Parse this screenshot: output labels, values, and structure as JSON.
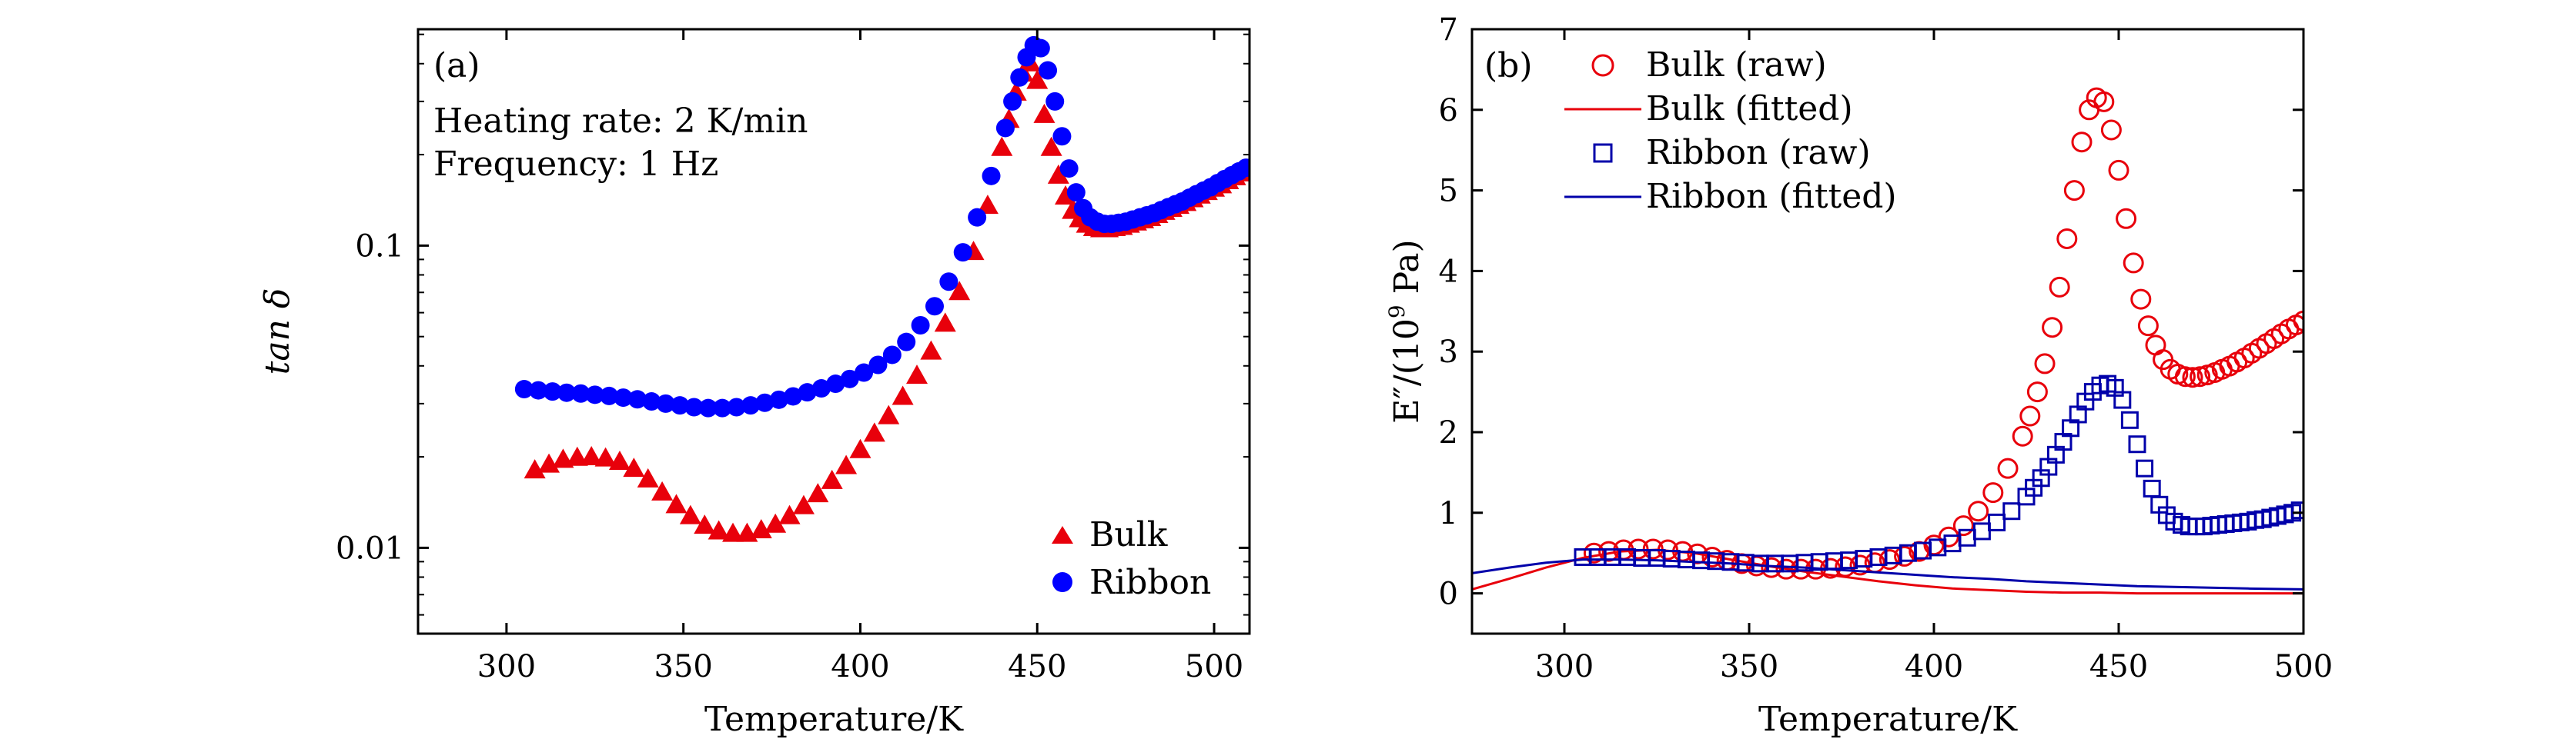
{
  "chart_data": [
    {
      "panel_label": "(a)",
      "type": "scatter",
      "annotations": [
        "Heating rate: 2 K/min",
        "Frequency: 1 Hz"
      ],
      "xlabel": "Temperature/K",
      "ylabel": "tan δ",
      "yscale": "log",
      "xlim": [
        275,
        510
      ],
      "ylim": [
        0.0052,
        0.52
      ],
      "xticks": [
        "300",
        "350",
        "400",
        "450",
        "500"
      ],
      "xtick_values": [
        300,
        350,
        400,
        450,
        500
      ],
      "yticks": [
        "0.01",
        "0.1"
      ],
      "ytick_values": [
        0.01,
        0.1
      ],
      "legend_position": "lower-right",
      "series": [
        {
          "name": "Bulk",
          "marker": "triangle",
          "color": "#e8000b",
          "x": [
            308,
            312,
            316,
            320,
            324,
            328,
            332,
            336,
            340,
            344,
            348,
            352,
            356,
            360,
            364,
            368,
            372,
            376,
            380,
            384,
            388,
            392,
            396,
            400,
            404,
            408,
            412,
            416,
            420,
            424,
            428,
            432,
            436,
            440,
            442,
            444,
            446,
            448,
            450,
            452,
            454,
            456,
            458,
            460,
            462,
            464,
            466,
            468,
            470,
            472,
            474,
            476,
            478,
            480,
            482,
            484,
            486,
            488,
            490,
            492,
            494,
            496,
            498,
            500,
            502,
            504,
            506,
            508,
            510
          ],
          "y": [
            0.018,
            0.0188,
            0.0195,
            0.0198,
            0.0199,
            0.0197,
            0.0192,
            0.0182,
            0.0168,
            0.0152,
            0.0138,
            0.0127,
            0.0118,
            0.0113,
            0.0111,
            0.0111,
            0.0114,
            0.0119,
            0.0127,
            0.0137,
            0.015,
            0.0166,
            0.0186,
            0.021,
            0.0238,
            0.0272,
            0.0315,
            0.037,
            0.0445,
            0.055,
            0.07,
            0.095,
            0.135,
            0.21,
            0.26,
            0.32,
            0.37,
            0.4,
            0.35,
            0.27,
            0.21,
            0.17,
            0.145,
            0.13,
            0.122,
            0.117,
            0.114,
            0.113,
            0.113,
            0.114,
            0.115,
            0.117,
            0.119,
            0.121,
            0.123,
            0.126,
            0.129,
            0.132,
            0.135,
            0.138,
            0.142,
            0.146,
            0.15,
            0.154,
            0.158,
            0.163,
            0.168,
            0.173,
            0.178
          ]
        },
        {
          "name": "Ribbon",
          "marker": "circle",
          "color": "#0000ff",
          "x": [
            305,
            309,
            313,
            317,
            321,
            325,
            329,
            333,
            337,
            341,
            345,
            349,
            353,
            357,
            361,
            365,
            369,
            373,
            377,
            381,
            385,
            389,
            393,
            397,
            401,
            405,
            409,
            413,
            417,
            421,
            425,
            429,
            433,
            437,
            441,
            443,
            445,
            447,
            449,
            451,
            453,
            455,
            457,
            459,
            461,
            463,
            465,
            467,
            469,
            471,
            473,
            475,
            477,
            479,
            481,
            483,
            485,
            487,
            489,
            491,
            493,
            495,
            497,
            499,
            501,
            503,
            505,
            507,
            509
          ],
          "y": [
            0.0335,
            0.0332,
            0.0329,
            0.0326,
            0.0324,
            0.0321,
            0.0318,
            0.0314,
            0.031,
            0.0305,
            0.03,
            0.0296,
            0.0292,
            0.029,
            0.029,
            0.0292,
            0.0296,
            0.0302,
            0.0309,
            0.0317,
            0.0327,
            0.0337,
            0.0349,
            0.0362,
            0.038,
            0.0403,
            0.0435,
            0.048,
            0.0545,
            0.063,
            0.076,
            0.095,
            0.124,
            0.17,
            0.245,
            0.3,
            0.36,
            0.42,
            0.46,
            0.45,
            0.38,
            0.3,
            0.23,
            0.18,
            0.15,
            0.133,
            0.124,
            0.12,
            0.118,
            0.118,
            0.119,
            0.12,
            0.122,
            0.124,
            0.126,
            0.128,
            0.131,
            0.134,
            0.137,
            0.14,
            0.144,
            0.148,
            0.152,
            0.156,
            0.161,
            0.166,
            0.171,
            0.176,
            0.181
          ]
        }
      ]
    },
    {
      "panel_label": "(b)",
      "type": "scatter",
      "xlabel": "Temperature/K",
      "ylabel_parts": {
        "main": "E″/(10",
        "sup": "9",
        "tail": " Pa)"
      },
      "xlim": [
        275,
        500
      ],
      "ylim": [
        -0.5,
        7
      ],
      "xticks": [
        "300",
        "350",
        "400",
        "450",
        "500"
      ],
      "xtick_values": [
        300,
        350,
        400,
        450,
        500
      ],
      "yticks": [
        "0",
        "1",
        "2",
        "3",
        "4",
        "5",
        "6",
        "7"
      ],
      "ytick_values": [
        0,
        1,
        2,
        3,
        4,
        5,
        6,
        7
      ],
      "legend_position": "top-left",
      "series": [
        {
          "name": "Bulk (raw)",
          "marker": "open-circle",
          "color": "#e8000b",
          "x": [
            308,
            312,
            316,
            320,
            324,
            328,
            332,
            336,
            340,
            344,
            348,
            352,
            356,
            360,
            364,
            368,
            372,
            376,
            380,
            384,
            388,
            392,
            396,
            400,
            404,
            408,
            412,
            416,
            420,
            424,
            426,
            428,
            430,
            432,
            434,
            436,
            438,
            440,
            442,
            444,
            446,
            448,
            450,
            452,
            454,
            456,
            458,
            460,
            462,
            464,
            466,
            468,
            470,
            472,
            474,
            476,
            478,
            480,
            482,
            484,
            486,
            488,
            490,
            492,
            494,
            496,
            498,
            500
          ],
          "y": [
            0.5,
            0.52,
            0.54,
            0.55,
            0.55,
            0.54,
            0.52,
            0.49,
            0.45,
            0.41,
            0.37,
            0.34,
            0.32,
            0.3,
            0.3,
            0.3,
            0.31,
            0.33,
            0.35,
            0.38,
            0.42,
            0.46,
            0.52,
            0.6,
            0.7,
            0.84,
            1.02,
            1.25,
            1.55,
            1.95,
            2.2,
            2.5,
            2.85,
            3.3,
            3.8,
            4.4,
            5.0,
            5.6,
            6.0,
            6.15,
            6.1,
            5.75,
            5.25,
            4.65,
            4.1,
            3.65,
            3.32,
            3.08,
            2.9,
            2.78,
            2.72,
            2.69,
            2.68,
            2.69,
            2.71,
            2.74,
            2.78,
            2.82,
            2.87,
            2.92,
            2.98,
            3.04,
            3.1,
            3.16,
            3.22,
            3.28,
            3.33,
            3.38
          ]
        },
        {
          "name": "Bulk (fitted)",
          "marker": "line",
          "color": "#e8000b",
          "x": [
            275,
            285,
            295,
            305,
            315,
            325,
            335,
            345,
            355,
            365,
            375,
            385,
            395,
            405,
            415,
            425,
            435,
            445,
            455,
            465,
            475,
            485,
            500
          ],
          "y": [
            0.05,
            0.18,
            0.32,
            0.44,
            0.52,
            0.54,
            0.5,
            0.42,
            0.34,
            0.27,
            0.21,
            0.15,
            0.1,
            0.06,
            0.04,
            0.02,
            0.01,
            0.01,
            0.0,
            0.0,
            0.0,
            0.0,
            0.0
          ]
        },
        {
          "name": "Ribbon (raw)",
          "marker": "open-square",
          "color": "#0000aa",
          "x": [
            305,
            309,
            313,
            317,
            321,
            325,
            329,
            333,
            337,
            341,
            345,
            349,
            353,
            357,
            361,
            365,
            369,
            373,
            377,
            381,
            385,
            389,
            393,
            397,
            401,
            405,
            409,
            413,
            417,
            421,
            425,
            427,
            429,
            431,
            433,
            435,
            437,
            439,
            441,
            443,
            445,
            447,
            449,
            451,
            453,
            455,
            457,
            459,
            461,
            463,
            465,
            467,
            469,
            471,
            473,
            475,
            477,
            479,
            481,
            483,
            485,
            487,
            489,
            491,
            493,
            495,
            497,
            499
          ],
          "y": [
            0.45,
            0.45,
            0.45,
            0.45,
            0.44,
            0.44,
            0.43,
            0.42,
            0.41,
            0.4,
            0.39,
            0.38,
            0.37,
            0.37,
            0.37,
            0.38,
            0.39,
            0.4,
            0.41,
            0.43,
            0.45,
            0.47,
            0.5,
            0.53,
            0.57,
            0.62,
            0.69,
            0.77,
            0.88,
            1.02,
            1.2,
            1.31,
            1.43,
            1.57,
            1.72,
            1.88,
            2.05,
            2.22,
            2.38,
            2.5,
            2.58,
            2.6,
            2.55,
            2.4,
            2.15,
            1.85,
            1.55,
            1.3,
            1.1,
            0.97,
            0.89,
            0.85,
            0.83,
            0.83,
            0.83,
            0.84,
            0.85,
            0.86,
            0.87,
            0.88,
            0.89,
            0.91,
            0.92,
            0.94,
            0.96,
            0.98,
            1.0,
            1.03
          ]
        },
        {
          "name": "Ribbon (fitted)",
          "marker": "line",
          "color": "#0000aa",
          "x": [
            275,
            285,
            295,
            305,
            315,
            325,
            335,
            345,
            355,
            365,
            375,
            385,
            395,
            405,
            415,
            425,
            435,
            445,
            455,
            465,
            475,
            485,
            500
          ],
          "y": [
            0.25,
            0.32,
            0.38,
            0.42,
            0.42,
            0.41,
            0.39,
            0.37,
            0.34,
            0.32,
            0.29,
            0.26,
            0.23,
            0.2,
            0.18,
            0.15,
            0.13,
            0.11,
            0.09,
            0.08,
            0.07,
            0.06,
            0.05
          ]
        }
      ]
    }
  ]
}
